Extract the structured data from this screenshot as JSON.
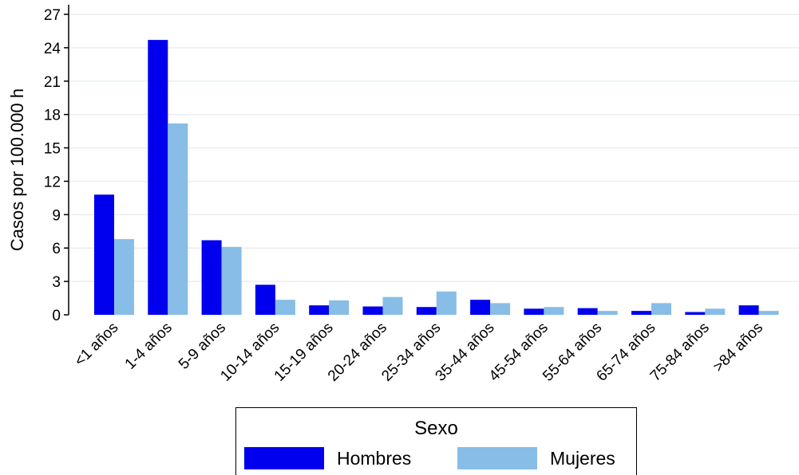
{
  "chart_data": {
    "type": "bar",
    "title": "",
    "xlabel": "",
    "ylabel": "Casos por 100.000 h",
    "ylim": [
      0,
      27
    ],
    "yticks": [
      0,
      3,
      6,
      9,
      12,
      15,
      18,
      21,
      24,
      27
    ],
    "grid": true,
    "legend_position": "bottom",
    "categories": [
      "<1 años",
      "1-4 años",
      "5-9 años",
      "10-14 años",
      "15-19 años",
      "20-24 años",
      "25-34 años",
      "35-44 años",
      "45-54 años",
      "55-64 años",
      "65-74 años",
      "75-84 años",
      ">84 años"
    ],
    "legend_title": "Sexo",
    "series": [
      {
        "name": "Hombres",
        "color": "#0000ee",
        "values": [
          10.8,
          24.7,
          6.7,
          2.7,
          0.85,
          0.75,
          0.7,
          1.35,
          0.55,
          0.6,
          0.35,
          0.25,
          0.85
        ]
      },
      {
        "name": "Mujeres",
        "color": "#87bde6",
        "values": [
          6.8,
          17.2,
          6.1,
          1.35,
          1.3,
          1.6,
          2.1,
          1.05,
          0.7,
          0.35,
          1.05,
          0.55,
          0.35
        ]
      }
    ]
  }
}
